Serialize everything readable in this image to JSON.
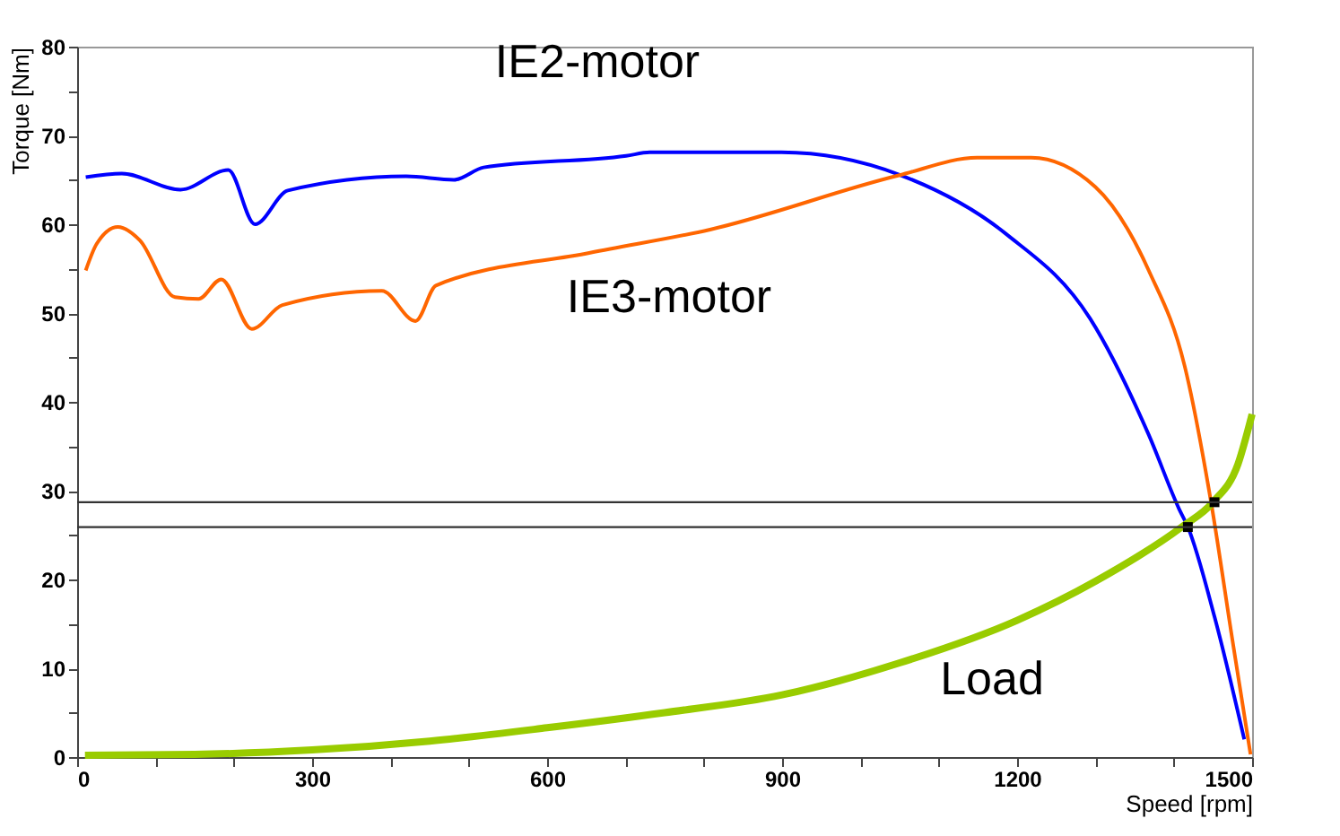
{
  "chart_data": {
    "type": "line",
    "xlabel": "Speed [rpm]",
    "ylabel": "Torque [Nm]",
    "xlim": [
      0,
      1500
    ],
    "ylim": [
      0,
      80
    ],
    "xticks": [
      0,
      {
        "value": 100,
        "label": null
      },
      {
        "value": 200,
        "label": null
      },
      300,
      {
        "value": 400,
        "label": null
      },
      {
        "value": 500,
        "label": null
      },
      600,
      {
        "value": 700,
        "label": null
      },
      {
        "value": 800,
        "label": null
      },
      900,
      {
        "value": 1000,
        "label": null
      },
      {
        "value": 1100,
        "label": null
      },
      1200,
      {
        "value": 1300,
        "label": null
      },
      {
        "value": 1400,
        "label": null
      },
      1500
    ],
    "yticks": [
      0,
      {
        "value": 5,
        "label": null
      },
      10,
      {
        "value": 15,
        "label": null
      },
      20,
      {
        "value": 25,
        "label": null
      },
      30,
      {
        "value": 35,
        "label": null
      },
      40,
      {
        "value": 45,
        "label": null
      },
      50,
      {
        "value": 55,
        "label": null
      },
      60,
      {
        "value": 65,
        "label": null
      },
      70,
      {
        "value": 75,
        "label": null
      },
      80
    ],
    "grid": false,
    "marker": "none",
    "line_style": "solid",
    "series": [
      {
        "color": "#0000ff",
        "x": [
          11,
          57,
          132,
          193,
          227,
          269,
          420,
          481,
          519,
          701,
          731,
          899,
          1049,
          1186,
          1293,
          1368,
          1407,
          1418,
          1452,
          1490
        ],
        "values": [
          65.3,
          65.7,
          63.9,
          66.1,
          60.0,
          63.8,
          65.4,
          65.0,
          66.4,
          67.7,
          68.1,
          68.1,
          65.6,
          58.9,
          49.4,
          36.3,
          27.9,
          25.9,
          15.8,
          2.0
        ]
      },
      {
        "color": "#ff6600",
        "x": [
          11,
          25,
          52,
          80,
          125,
          155,
          184,
          223,
          262,
          389,
          432,
          458,
          655,
          808,
          1049,
          1149,
          1218,
          1300,
          1368,
          1414,
          1448,
          1475,
          1498
        ],
        "values": [
          54.8,
          57.8,
          59.7,
          58.2,
          51.8,
          51.6,
          53.8,
          48.2,
          50.9,
          52.5,
          49.1,
          53.1,
          56.8,
          59.4,
          65.5,
          67.5,
          67.5,
          64.2,
          54.8,
          44.0,
          28.5,
          13.1,
          0.3
        ]
      },
      {
        "color": "#99cc00",
        "x": [
          10,
          150,
          300,
          450,
          600,
          750,
          900,
          1050,
          1200,
          1300,
          1410,
          1450,
          1482,
          1500
        ],
        "values": [
          0.2,
          0.3,
          0.8,
          1.8,
          3.3,
          5.0,
          7.0,
          10.6,
          15.4,
          19.8,
          25.9,
          28.7,
          33.0,
          38.6
        ]
      },
      {
        "type": "scatter",
        "marker": "square",
        "color": "#000000",
        "x": [
          1418,
          1452
        ],
        "values": [
          25.9,
          28.7
        ]
      }
    ],
    "ref_lines": [
      {
        "axis": "y",
        "value": 28.7,
        "color": "#333333"
      },
      {
        "axis": "y",
        "value": 25.9,
        "color": "#333333"
      }
    ],
    "annotations": [
      "IE2-motor",
      "IE3-motor",
      "Load"
    ]
  }
}
